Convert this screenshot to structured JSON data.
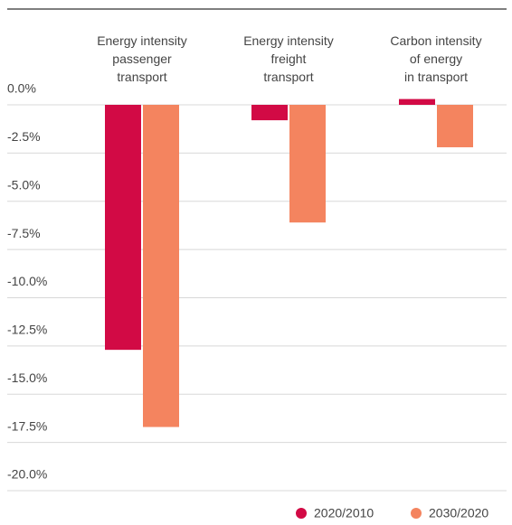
{
  "chart_data": {
    "type": "bar",
    "categories": [
      "Energy intensity\npassenger\ntransport",
      "Energy intensity\nfreight\ntransport",
      "Carbon intensity\nof energy\nin transport"
    ],
    "series": [
      {
        "name": "2020/2010",
        "color": "#d20a45",
        "values": [
          -12.7,
          -0.8,
          0.3
        ]
      },
      {
        "name": "2030/2020",
        "color": "#f4845f",
        "values": [
          -16.7,
          -6.1,
          -2.2
        ]
      }
    ],
    "ylim": [
      -20,
      0.3
    ],
    "yticks": [
      {
        "value": 0,
        "label": "0.0%"
      },
      {
        "value": -2.5,
        "label": "-2.5%"
      },
      {
        "value": -5,
        "label": "-5.0%"
      },
      {
        "value": -7.5,
        "label": "-7.5%"
      },
      {
        "value": -10,
        "label": "-10.0%"
      },
      {
        "value": -12.5,
        "label": "-12.5%"
      },
      {
        "value": -15,
        "label": "-15.0%"
      },
      {
        "value": -17.5,
        "label": "-17.5%"
      },
      {
        "value": -20,
        "label": "-20.0%"
      }
    ],
    "grid": true
  }
}
